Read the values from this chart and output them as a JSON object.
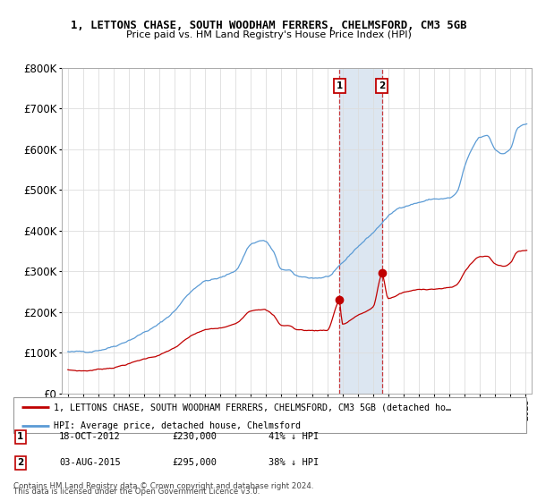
{
  "title1": "1, LETTONS CHASE, SOUTH WOODHAM FERRERS, CHELMSFORD, CM3 5GB",
  "title2": "Price paid vs. HM Land Registry's House Price Index (HPI)",
  "ylim": [
    0,
    800000
  ],
  "yticks": [
    0,
    100000,
    200000,
    300000,
    400000,
    500000,
    600000,
    700000,
    800000
  ],
  "ytick_labels": [
    "£0",
    "£100K",
    "£200K",
    "£300K",
    "£400K",
    "£500K",
    "£600K",
    "£700K",
    "£800K"
  ],
  "sale1_date": 2012.8,
  "sale1_price": 230000,
  "sale1_label": "1",
  "sale2_date": 2015.6,
  "sale2_price": 295000,
  "sale2_label": "2",
  "hpi_color": "#5b9bd5",
  "price_color": "#c00000",
  "sale_dot_color": "#c00000",
  "shaded_color": "#dce6f1",
  "legend1": "1, LETTONS CHASE, SOUTH WOODHAM FERRERS, CHELMSFORD, CM3 5GB (detached ho…",
  "legend2": "HPI: Average price, detached house, Chelmsford",
  "footer1": "Contains HM Land Registry data © Crown copyright and database right 2024.",
  "footer2": "This data is licensed under the Open Government Licence v3.0.",
  "table": [
    {
      "num": "1",
      "date": "18-OCT-2012",
      "price": "£230,000",
      "hpi": "41% ↓ HPI"
    },
    {
      "num": "2",
      "date": "03-AUG-2015",
      "price": "£295,000",
      "hpi": "38% ↓ HPI"
    }
  ]
}
